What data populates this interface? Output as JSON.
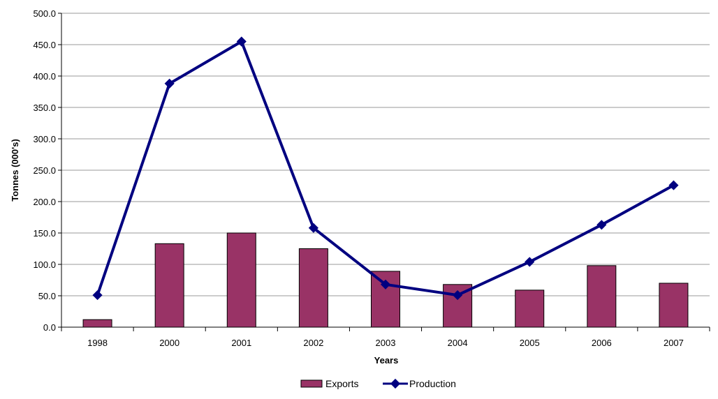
{
  "chart_data": {
    "type": "bar+line",
    "title": "",
    "xlabel": "Years",
    "ylabel": "Tonnes (000's)",
    "ylim": [
      0,
      500
    ],
    "ytick_step": 50,
    "ytick_labels": [
      "0.0",
      "50.0",
      "100.0",
      "150.0",
      "200.0",
      "250.0",
      "300.0",
      "350.0",
      "400.0",
      "450.0",
      "500.0"
    ],
    "grid": true,
    "categories": [
      "1998",
      "2000",
      "2001",
      "2002",
      "2003",
      "2004",
      "2005",
      "2006",
      "2007"
    ],
    "series": [
      {
        "name": "Exports",
        "type": "bar",
        "color": "#993366",
        "values": [
          12,
          133,
          150,
          125,
          89,
          68,
          59,
          98,
          70
        ]
      },
      {
        "name": "Production",
        "type": "line",
        "color": "#000080",
        "values": [
          51,
          388,
          455,
          158,
          68,
          51,
          104,
          163,
          226
        ]
      }
    ],
    "legend_position": "bottom"
  }
}
